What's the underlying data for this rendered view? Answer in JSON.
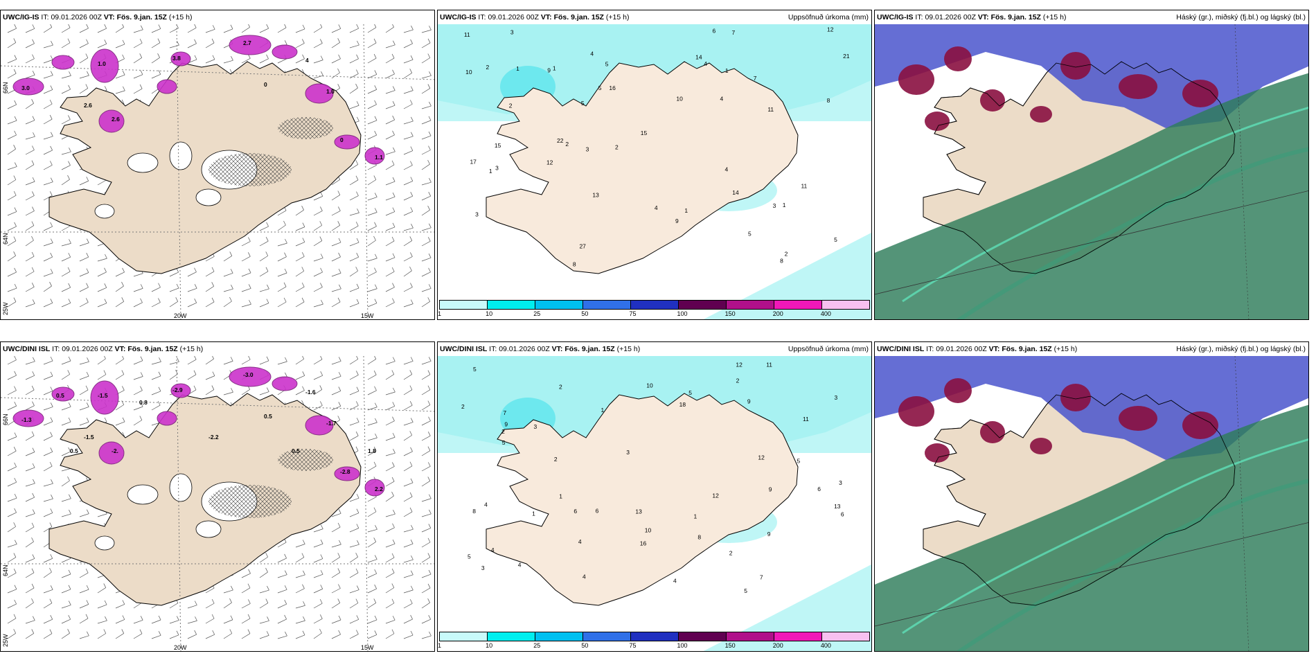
{
  "panels": [
    {
      "model": "UWC/IG-IS",
      "it_label": "IT:",
      "it": "09.01.2026 00Z",
      "vt_label": "VT:",
      "vt": "Fös. 9.jan. 15Z",
      "lead": "(+15 h)",
      "title_right": "",
      "lat_ticks": [
        "66N",
        "64N"
      ],
      "lon_ticks": [
        "25W",
        "20W",
        "15W"
      ],
      "labels": [
        "3.0",
        "1.0",
        "2.6",
        "3.8",
        "2.7",
        "1.0",
        "0",
        "1.1",
        "2.6",
        "0",
        "4"
      ]
    },
    {
      "model": "UWC/IG-IS",
      "it_label": "IT:",
      "it": "09.01.2026 00Z",
      "vt_label": "VT:",
      "vt": "Fös. 9.jan. 15Z",
      "lead": "(+15 h)",
      "title_right": "Uppsöfnuð úrkoma (mm)",
      "numbers": [
        "3",
        "5",
        "6",
        "10",
        "8",
        "11",
        "12",
        "14",
        "22",
        "15",
        "17",
        "14",
        "8",
        "11",
        "7",
        "2",
        "4",
        "1",
        "5",
        "9",
        "4",
        "11",
        "16",
        "27",
        "12",
        "5",
        "8",
        "7",
        "13",
        "9",
        "10",
        "3",
        "1",
        "4",
        "3",
        "21",
        "15",
        "5",
        "5",
        "1",
        "1",
        "2",
        "4",
        "1",
        "2",
        "3",
        "3",
        "1",
        "2",
        "2",
        "4"
      ],
      "colorbar_labels": [
        "1",
        "10",
        "25",
        "50",
        "75",
        "100",
        "150",
        "200",
        "400"
      ],
      "colorbar_colors": [
        "#c8fafa",
        "#00eeee",
        "#00c0f0",
        "#3070e8",
        "#2030c0",
        "#600050",
        "#b0108a",
        "#f018b8",
        "#f8c0f0"
      ]
    },
    {
      "model": "UWC/IG-IS",
      "it_label": "IT:",
      "it": "09.01.2026 00Z",
      "vt_label": "VT:",
      "vt": "Fös. 9.jan. 15Z",
      "lead": "(+15 h)",
      "title_right": "Háský (gr.), miðský (fj.bl.) og lágský (bl.)"
    },
    {
      "model": "UWC/DINI ISL",
      "it_label": "IT:",
      "it": "09.01.2026 00Z",
      "vt_label": "VT:",
      "vt": "Fös. 9.jan. 15Z",
      "lead": "(+15 h)",
      "title_right": "",
      "lat_ticks": [
        "66N",
        "64N"
      ],
      "lon_ticks": [
        "25W",
        "20W",
        "15W"
      ],
      "labels": [
        "-1.3",
        "-1.5",
        "-2.",
        "-2.9",
        "-3.0",
        "-1.7",
        "-2.8",
        "2.2",
        "-1.5",
        "0.5",
        "-1.6",
        "-2.2",
        "0.5",
        "0.8",
        "1.8",
        "0.5",
        "0.5"
      ]
    },
    {
      "model": "UWC/DINI ISL",
      "it_label": "IT:",
      "it": "09.01.2026 00Z",
      "vt_label": "VT:",
      "vt": "Fös. 9.jan. 15Z",
      "lead": "(+15 h)",
      "title_right": "Uppsöfnuð úrkoma (mm)",
      "numbers": [
        "10",
        "16",
        "13",
        "10",
        "11",
        "12",
        "9",
        "11",
        "13",
        "7",
        "4",
        "6",
        "9",
        "12",
        "9",
        "8",
        "7",
        "9",
        "6",
        "8",
        "12",
        "6",
        "4",
        "5",
        "1",
        "2",
        "2",
        "2",
        "4",
        "5",
        "5",
        "4",
        "5",
        "1",
        "4",
        "3",
        "4",
        "3",
        "2",
        "5",
        "3",
        "1",
        "2",
        "6",
        "1",
        "5",
        "2",
        "3",
        "3",
        "18"
      ],
      "colorbar_labels": [
        "1",
        "10",
        "25",
        "50",
        "75",
        "100",
        "150",
        "200",
        "400"
      ],
      "colorbar_colors": [
        "#c8fafa",
        "#00eeee",
        "#00c0f0",
        "#3070e8",
        "#2030c0",
        "#600050",
        "#b0108a",
        "#f018b8",
        "#f8c0f0"
      ]
    },
    {
      "model": "UWC/DINI ISL",
      "it_label": "IT:",
      "it": "09.01.2026 00Z",
      "vt_label": "VT:",
      "vt": "Fös. 9.jan. 15Z",
      "lead": "(+15 h)",
      "title_right": "Háský (gr.), miðský (fj.bl.) og lágský (bl.)"
    }
  ]
}
